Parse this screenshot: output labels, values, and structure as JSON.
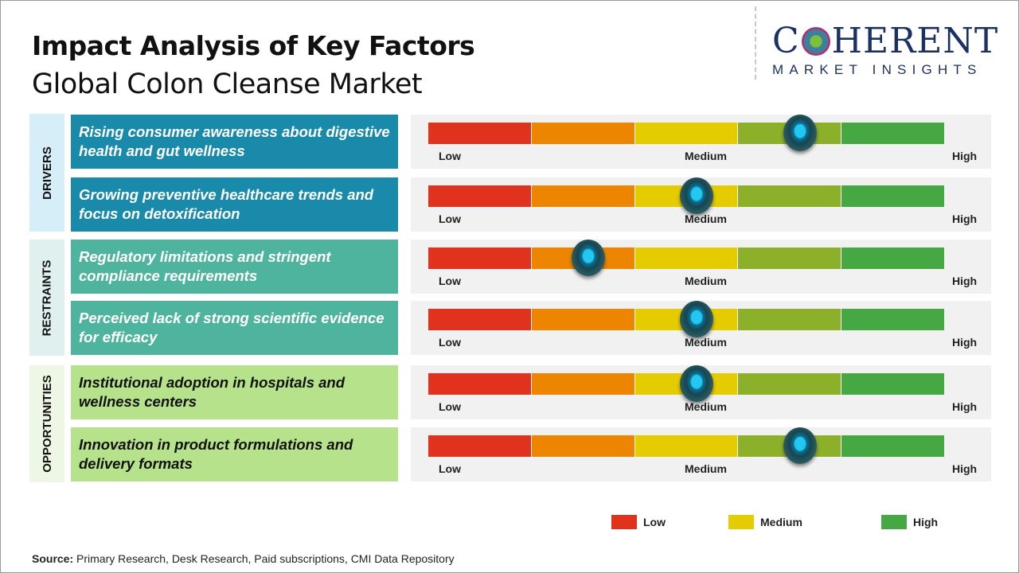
{
  "header": {
    "title": "Impact Analysis of Key Factors",
    "subtitle": "Global Colon Cleanse Market"
  },
  "logo": {
    "main_left": "C",
    "main_right": "HERENT",
    "sub": "MARKET INSIGHTS"
  },
  "chart_data": {
    "type": "gauge",
    "scale_labels": [
      "Low",
      "Medium",
      "High"
    ],
    "segment_colors": [
      "#e0321c",
      "#ee8500",
      "#e5cc00",
      "#8db02a",
      "#45a843"
    ],
    "range": [
      0,
      100
    ],
    "categories": [
      {
        "name": "DRIVERS",
        "box_color": "#d6eef8",
        "factor_color": "#1a8aab",
        "text_color": "#ffffff",
        "factors": [
          {
            "label": "Rising consumer awareness about digestive health and gut wellness",
            "impact": 72
          },
          {
            "label": "Growing preventive healthcare trends and focus on detoxification",
            "impact": 52
          }
        ]
      },
      {
        "name": "RESTRAINTS",
        "box_color": "#dff0ee",
        "factor_color": "#4eb49d",
        "text_color": "#ffffff",
        "factors": [
          {
            "label": "Regulatory limitations and stringent compliance requirements",
            "impact": 31
          },
          {
            "label": "Perceived lack of strong scientific evidence for efficacy",
            "impact": 52
          }
        ]
      },
      {
        "name": "OPPORTUNITIES",
        "box_color": "#eef7e6",
        "factor_color": "#b5e28b",
        "text_color": "#111111",
        "factors": [
          {
            "label": "Institutional adoption in hospitals and wellness centers",
            "impact": 52
          },
          {
            "label": "Innovation in product formulations and delivery formats",
            "impact": 72
          }
        ]
      }
    ],
    "legend": [
      {
        "label": "Low",
        "color": "#e0321c"
      },
      {
        "label": "Medium",
        "color": "#e5cc00"
      },
      {
        "label": "High",
        "color": "#45a843"
      }
    ]
  },
  "footer": {
    "source_label": "Source:",
    "source_text": " Primary Research, Desk Research, Paid subscriptions, CMI Data Repository"
  }
}
